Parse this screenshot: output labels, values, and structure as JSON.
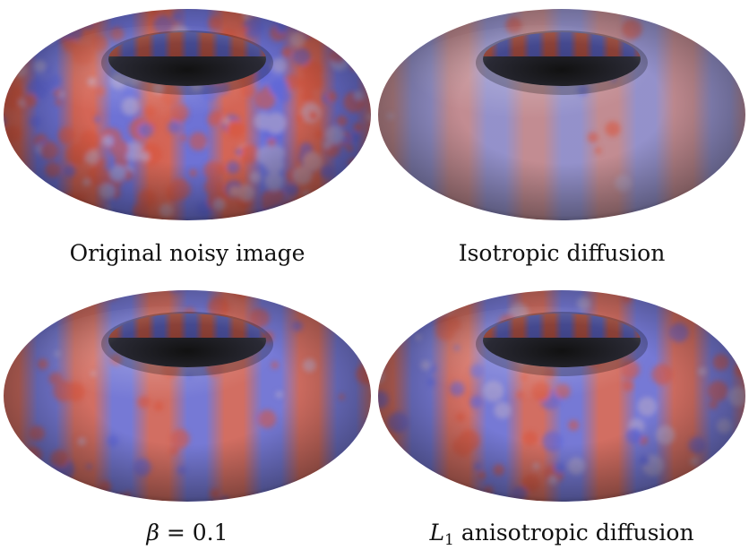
{
  "figure": {
    "panels": [
      {
        "id": "noisy",
        "caption": "Original noisy image",
        "noise_level": 1.0,
        "stripe_contrast": 0.9
      },
      {
        "id": "isotropic",
        "caption": "Isotropic diffusion",
        "noise_level": 0.05,
        "stripe_contrast": 0.6
      },
      {
        "id": "beta",
        "caption_math_symbol": "β",
        "caption_math_rest": "= 0.1",
        "noise_level": 0.25,
        "stripe_contrast": 0.85
      },
      {
        "id": "l1",
        "caption_math_symbol": "L",
        "caption_subscript": "1",
        "caption_rest": "anisotropic diffusion",
        "noise_level": 0.35,
        "stripe_contrast": 0.85
      }
    ],
    "colors": {
      "red": "#d9533a",
      "blue": "#5a62d8",
      "background": "#ffffff"
    }
  }
}
